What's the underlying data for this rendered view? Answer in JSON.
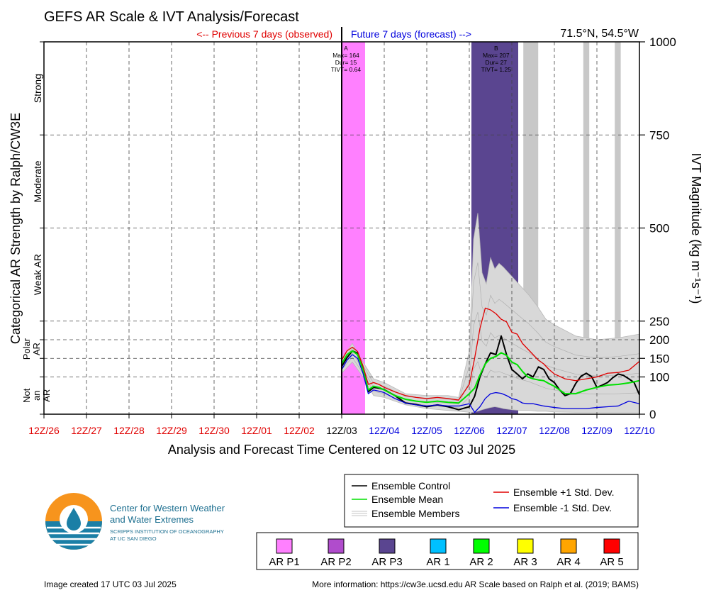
{
  "header": {
    "title": "GEFS AR Scale & IVT Analysis/Forecast",
    "previous_label": "<-- Previous 7 days (observed)",
    "future_label": "Future 7 days (forecast) -->",
    "location": "71.5°N, 54.5°W"
  },
  "axes": {
    "x_title": "Analysis and Forecast Time Centered on 12 UTC 03 Jul 2025",
    "x_ticks": [
      "12Z/26",
      "12Z/27",
      "12Z/28",
      "12Z/29",
      "12Z/30",
      "12Z/01",
      "12Z/02",
      "12Z/03",
      "12Z/04",
      "12Z/05",
      "12Z/06",
      "12Z/07",
      "12Z/08",
      "12Z/09",
      "12Z/10"
    ],
    "x_tick_colors": [
      "#e00000",
      "#e00000",
      "#e00000",
      "#e00000",
      "#e00000",
      "#e00000",
      "#e00000",
      "#000000",
      "#0000dd",
      "#0000dd",
      "#0000dd",
      "#0000dd",
      "#0000dd",
      "#0000dd",
      "#0000dd"
    ],
    "y_right_title": "IVT Magnitude (kg m⁻¹s⁻¹)",
    "y_right_ticks": [
      0,
      100,
      150,
      200,
      250,
      500,
      750,
      1000
    ],
    "y_left_title": "Categorical AR Strength by Ralph/CW3E",
    "categories": [
      {
        "label": "Strong",
        "from": 750,
        "to": 1000
      },
      {
        "label": "Moderate",
        "from": 500,
        "to": 750
      },
      {
        "label": "Weak AR",
        "from": 250,
        "to": 500
      },
      {
        "label": "Polar AR",
        "from": 100,
        "to": 250
      },
      {
        "label": "Not an AR",
        "from": 0,
        "to": 100
      }
    ]
  },
  "annotations": [
    {
      "id": "A",
      "lines": [
        "A",
        "Max= 164",
        "Dur= 15",
        "TIVT= 0.64"
      ],
      "x_day": 7.1
    },
    {
      "id": "B",
      "lines": [
        "B",
        "Max= 207",
        "Dur= 27",
        "TIVT= 1.25"
      ],
      "x_day": 10.63
    }
  ],
  "chart_data": {
    "type": "line",
    "title": "GEFS AR Scale & IVT Analysis/Forecast",
    "x_range_days": [
      0,
      14
    ],
    "ylim": [
      0,
      1000
    ],
    "x_unit": "days since 12Z/26",
    "shaded_events": [
      {
        "name": "AR P1",
        "start": 7.0,
        "end": 7.55,
        "top": 1000,
        "color": "#ff80ff"
      },
      {
        "name": "AR P3",
        "start": 10.05,
        "end": 11.15,
        "top": 1000,
        "color": "#5a4590"
      }
    ],
    "probability_bars": [
      {
        "start": 11.27,
        "end": 11.62,
        "top_start": 1000,
        "top_end": 210
      },
      {
        "start": 12.68,
        "end": 12.82,
        "top_start": 1000,
        "top_end": 150
      },
      {
        "start": 13.42,
        "end": 13.56,
        "top_start": 1000,
        "top_end": 205
      }
    ],
    "series": [
      {
        "name": "Ensemble Control",
        "color": "#000000",
        "x": [
          7.0,
          7.125,
          7.25,
          7.375,
          7.5,
          7.625,
          7.75,
          7.875,
          8.0,
          8.25,
          8.5,
          8.75,
          9.0,
          9.25,
          9.5,
          9.75,
          10.0,
          10.125,
          10.25,
          10.375,
          10.5,
          10.625,
          10.75,
          10.875,
          11.0,
          11.125,
          11.25,
          11.375,
          11.5,
          11.625,
          11.75,
          11.875,
          12.0,
          12.125,
          12.25,
          12.375,
          12.5,
          12.625,
          12.75,
          12.875,
          13.0,
          13.125,
          13.25,
          13.375,
          13.5,
          13.625,
          13.75,
          13.875,
          14.0
        ],
        "y": [
          128,
          152,
          170,
          164,
          125,
          60,
          72,
          70,
          66,
          50,
          30,
          26,
          20,
          25,
          20,
          12,
          20,
          48,
          100,
          135,
          165,
          160,
          210,
          160,
          120,
          108,
          95,
          108,
          100,
          127,
          120,
          95,
          85,
          65,
          50,
          55,
          82,
          102,
          110,
          101,
          72,
          78,
          85,
          98,
          108,
          104,
          95,
          85,
          52
        ]
      },
      {
        "name": "Ensemble Mean",
        "color": "#00e000",
        "x": [
          7.0,
          7.125,
          7.25,
          7.375,
          7.5,
          7.625,
          7.75,
          7.875,
          8.0,
          8.25,
          8.5,
          8.75,
          9.0,
          9.25,
          9.5,
          9.75,
          10.0,
          10.125,
          10.25,
          10.375,
          10.5,
          10.625,
          10.75,
          10.875,
          11.0,
          11.125,
          11.25,
          11.375,
          11.5,
          11.625,
          11.75,
          11.875,
          12.0,
          12.25,
          12.5,
          12.75,
          13.0,
          13.25,
          13.5,
          13.75,
          14.0
        ],
        "y": [
          135,
          160,
          170,
          160,
          120,
          65,
          75,
          72,
          65,
          50,
          40,
          35,
          32,
          35,
          32,
          30,
          55,
          70,
          105,
          135,
          150,
          155,
          165,
          158,
          140,
          133,
          115,
          100,
          95,
          92,
          90,
          82,
          75,
          55,
          55,
          65,
          72,
          78,
          80,
          84,
          90
        ]
      },
      {
        "name": "Ensemble +1 Std. Dev.",
        "color": "#e00000",
        "x": [
          7.0,
          7.125,
          7.25,
          7.375,
          7.5,
          7.625,
          7.75,
          7.875,
          8.0,
          8.25,
          8.5,
          8.75,
          9.0,
          9.25,
          9.5,
          9.75,
          10.0,
          10.125,
          10.25,
          10.375,
          10.5,
          10.625,
          10.75,
          10.875,
          11.0,
          11.125,
          11.25,
          11.375,
          11.5,
          11.625,
          11.75,
          11.875,
          12.0,
          12.25,
          12.5,
          12.75,
          13.0,
          13.25,
          13.5,
          13.75,
          14.0
        ],
        "y": [
          145,
          170,
          180,
          168,
          130,
          80,
          85,
          80,
          72,
          60,
          50,
          45,
          42,
          45,
          42,
          38,
          80,
          150,
          230,
          285,
          280,
          270,
          255,
          248,
          220,
          215,
          190,
          175,
          160,
          145,
          135,
          120,
          108,
          95,
          90,
          95,
          100,
          110,
          112,
          118,
          142
        ]
      },
      {
        "name": "Ensemble -1 Std. Dev.",
        "color": "#0000dd",
        "x": [
          7.0,
          7.125,
          7.25,
          7.375,
          7.5,
          7.625,
          7.75,
          7.875,
          8.0,
          8.25,
          8.5,
          8.75,
          9.0,
          9.25,
          9.5,
          9.75,
          10.0,
          10.125,
          10.25,
          10.375,
          10.5,
          10.625,
          10.75,
          10.875,
          11.0,
          11.125,
          11.25,
          11.375,
          11.5,
          11.625,
          11.75,
          11.875,
          12.0,
          12.25,
          12.5,
          12.75,
          13.0,
          13.25,
          13.5,
          13.75,
          14.0
        ],
        "y": [
          120,
          145,
          160,
          150,
          110,
          55,
          65,
          62,
          58,
          42,
          30,
          25,
          22,
          25,
          22,
          22,
          28,
          5,
          20,
          42,
          55,
          58,
          56,
          50,
          42,
          38,
          30,
          28,
          28,
          25,
          22,
          20,
          18,
          15,
          15,
          15,
          18,
          20,
          22,
          35,
          28
        ]
      }
    ],
    "members_envelope": {
      "name": "Ensemble Members",
      "x": [
        7.0,
        7.25,
        7.5,
        7.75,
        8.0,
        8.5,
        9.0,
        9.5,
        9.75,
        10.0,
        10.1,
        10.2,
        10.3,
        10.4,
        10.5,
        10.6,
        10.7,
        10.8,
        11.0,
        11.2,
        11.4,
        11.6,
        11.8,
        12.0,
        12.5,
        13.0,
        13.5,
        14.0
      ],
      "upper": [
        150,
        190,
        140,
        95,
        85,
        55,
        50,
        50,
        45,
        170,
        470,
        540,
        380,
        350,
        420,
        390,
        405,
        395,
        370,
        345,
        320,
        290,
        255,
        240,
        210,
        200,
        205,
        215
      ],
      "lower": [
        110,
        140,
        100,
        50,
        45,
        25,
        15,
        10,
        8,
        5,
        5,
        8,
        12,
        15,
        18,
        20,
        18,
        15,
        12,
        10,
        10,
        8,
        8,
        6,
        5,
        5,
        5,
        5
      ]
    }
  },
  "legend": {
    "lines": [
      {
        "label": "Ensemble Control",
        "color": "#000000"
      },
      {
        "label": "Ensemble Mean",
        "color": "#00e000"
      },
      {
        "label": "Ensemble Members",
        "color": "#b0b0b0"
      },
      {
        "label": "Ensemble +1 Std. Dev.",
        "color": "#e00000"
      },
      {
        "label": "Ensemble -1 Std. Dev.",
        "color": "#0000dd"
      }
    ],
    "scale": [
      {
        "label": "AR P1",
        "color": "#ff80ff"
      },
      {
        "label": "AR P2",
        "color": "#b04ccc"
      },
      {
        "label": "AR P3",
        "color": "#5a4590"
      },
      {
        "label": "AR 1",
        "color": "#00c0ff"
      },
      {
        "label": "AR 2",
        "color": "#00ff00"
      },
      {
        "label": "AR 3",
        "color": "#ffff00"
      },
      {
        "label": "AR 4",
        "color": "#ffa500"
      },
      {
        "label": "AR 5",
        "color": "#ff0000"
      }
    ]
  },
  "logo": {
    "line1": "Center for Western Weather",
    "line2": "and Water Extremes",
    "line3": "SCRIPPS INSTITUTION OF OCEANOGRAPHY",
    "line4": "AT UC SAN DIEGO"
  },
  "footer": {
    "created": "Image created 17 UTC 03 Jul 2025",
    "more_info": "More information: https://cw3e.ucsd.edu AR Scale based on Ralph et al. (2019; BAMS)"
  }
}
